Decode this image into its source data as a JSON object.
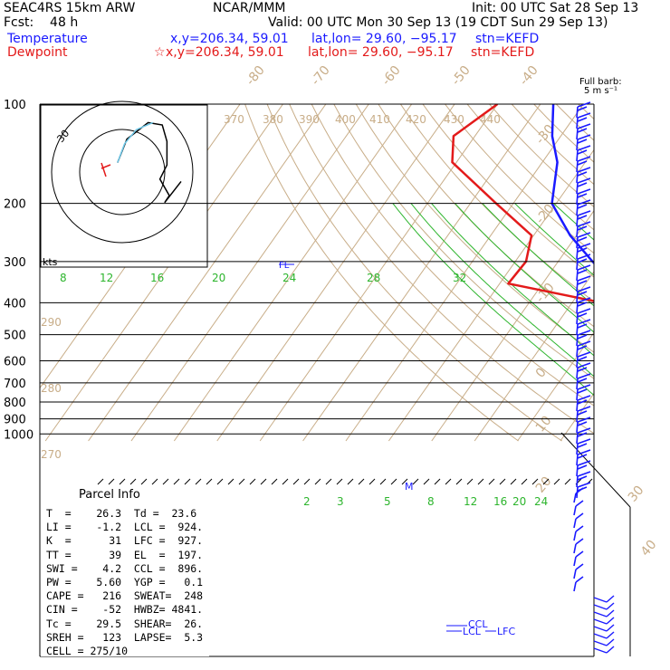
{
  "header": {
    "model": "SEAC4RS 15km ARW",
    "org": "NCAR/MMM",
    "init": "Init: 00 UTC Sat 28 Sep 13",
    "fcst": "Fcst:    48 h",
    "valid": "Valid: 00 UTC Mon 30 Sep 13 (19 CDT Sun 29 Sep 13)",
    "temp_label": "Temperature",
    "temp_loc": "x,y=206.34, 59.01",
    "temp_latlon": "lat,lon= 29.60, −95.17",
    "temp_stn": "stn=KEFD",
    "dew_label": "Dewpoint",
    "dew_loc": "x,y=206.34, 59.01",
    "dew_latlon": "lat,lon= 29.60, −95.17",
    "dew_stn": "stn=KEFD",
    "barb_label": "Full barb:",
    "barb_units": "5 m s⁻¹",
    "colors": {
      "temperature": "#1a1aff",
      "dewpoint": "#e31a1a",
      "dry_adiabat": "#c8ad88",
      "moist_adiabat": "#2db52d"
    }
  },
  "chart_data": {
    "type": "line",
    "pressure_levels": [
      "100",
      "200",
      "300",
      "400",
      "500",
      "600",
      "700",
      "800",
      "900",
      "1000"
    ],
    "isotherm_labels": [
      "-80",
      "-70",
      "-60",
      "-50",
      "-40",
      "-30",
      "-20",
      "-10",
      "0",
      "10",
      "20",
      "30",
      "40"
    ],
    "theta_labels": [
      "370",
      "380",
      "390",
      "400",
      "410",
      "420",
      "430",
      "440",
      "290",
      "280",
      "270"
    ],
    "mixing_ratio_labels": [
      "2",
      "3",
      "5",
      "8",
      "12",
      "16",
      "20",
      "24"
    ],
    "moist_adiabat_labels": [
      "8",
      "12",
      "16",
      "20",
      "24",
      "28",
      "32"
    ],
    "hodograph_units": "kts",
    "hodograph_label": "30",
    "level_labels": {
      "fl": "FL",
      "m": "M",
      "ccl": "CCL",
      "lcl": "LCL",
      "lfc": "LFC"
    },
    "series": [
      {
        "name": "Temperature",
        "color": "#1a1aff",
        "points": [
          [
            1000,
            26.3
          ],
          [
            975,
            24.0
          ],
          [
            950,
            21.4
          ],
          [
            925,
            19.5
          ],
          [
            900,
            17.8
          ],
          [
            850,
            14.5
          ],
          [
            800,
            11.0
          ],
          [
            750,
            7.2
          ],
          [
            700,
            3.4
          ],
          [
            650,
            -0.5
          ],
          [
            600,
            -4.8
          ],
          [
            550,
            -9.3
          ],
          [
            500,
            -14.3
          ],
          [
            450,
            -19.8
          ],
          [
            400,
            -26.0
          ],
          [
            350,
            -33.5
          ],
          [
            300,
            -42.0
          ],
          [
            250,
            -51.5
          ],
          [
            200,
            -61.0
          ],
          [
            150,
            -66.5
          ],
          [
            125,
            -72.0
          ],
          [
            100,
            -77.0
          ]
        ]
      },
      {
        "name": "Dewpoint",
        "color": "#e31a1a",
        "points": [
          [
            1000,
            23.6
          ],
          [
            975,
            21.5
          ],
          [
            950,
            16.5
          ],
          [
            925,
            12.5
          ],
          [
            900,
            10.8
          ],
          [
            850,
            7.3
          ],
          [
            800,
            3.5
          ],
          [
            750,
            -1.5
          ],
          [
            700,
            -6.8
          ],
          [
            650,
            -11.5
          ],
          [
            600,
            -17.0
          ],
          [
            550,
            -22.0
          ],
          [
            500,
            -26.5
          ],
          [
            450,
            -30.0
          ],
          [
            400,
            -33.0
          ],
          [
            350,
            -58.0
          ],
          [
            300,
            -57.5
          ],
          [
            250,
            -60.5
          ],
          [
            200,
            -74.0
          ],
          [
            150,
            -91.0
          ],
          [
            125,
            -95.0
          ],
          [
            100,
            -90.0
          ]
        ]
      }
    ],
    "hodograph": [
      [
        -2,
        4
      ],
      [
        2,
        14
      ],
      [
        11,
        21
      ],
      [
        17,
        20
      ],
      [
        19,
        13
      ],
      [
        19,
        3
      ],
      [
        16,
        -3
      ],
      [
        20,
        -10
      ],
      [
        18,
        -13
      ],
      [
        25,
        -4
      ]
    ],
    "hodograph_low": [
      [
        -2,
        4
      ],
      [
        1,
        12
      ],
      [
        6,
        18
      ],
      [
        13,
        21
      ]
    ]
  },
  "parcel": {
    "title": "Parcel Info",
    "rows": [
      "T  =    26.3  Td =  23.6",
      "LI =    -1.2  LCL =  924.",
      "K  =      31  LFC =  927.",
      "TT =      39  EL  =  197.",
      "SWI =    4.2  CCL =  896.",
      "PW =    5.60  YGP =   0.1",
      "CAPE =   216  SWEAT=  248",
      "CIN =    -52  HWBZ= 4841.",
      "Tc =    29.5  SHEAR=  26.",
      "SREH =   123  LAPSE=  5.3",
      "CELL = 275/10"
    ]
  }
}
